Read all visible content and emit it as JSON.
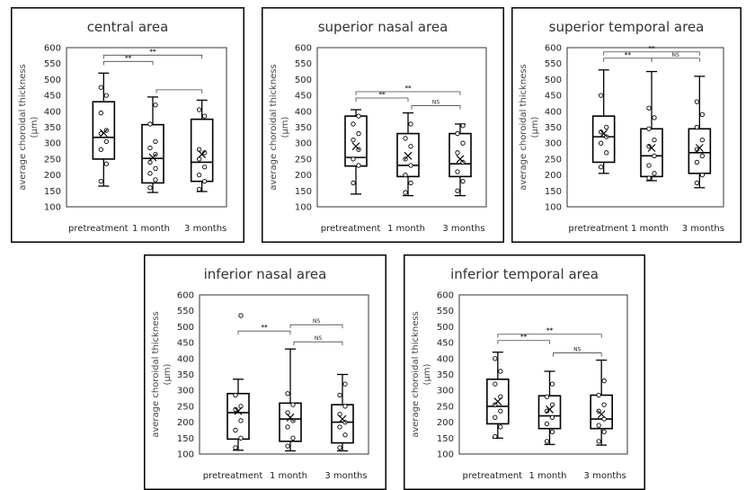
{
  "chart_data": [
    {
      "type": "box",
      "title": "central area",
      "ylabel": "average choroidal thickness (μm)",
      "ylim": [
        100,
        600
      ],
      "yticks": [
        100,
        150,
        200,
        250,
        300,
        350,
        400,
        450,
        500,
        550,
        600
      ],
      "categories": [
        "pretreatment",
        "1 month",
        "3 months"
      ],
      "boxes": [
        {
          "min": 165,
          "q1": 250,
          "median": 318,
          "q3": 430,
          "max": 520,
          "mean": 332,
          "points": [
            180,
            235,
            280,
            305,
            330,
            340,
            395,
            450,
            475
          ]
        },
        {
          "min": 145,
          "q1": 175,
          "median": 252,
          "q3": 358,
          "max": 445,
          "mean": 255,
          "points": [
            160,
            185,
            205,
            220,
            240,
            265,
            285,
            305,
            360,
            420
          ]
        },
        {
          "min": 148,
          "q1": 180,
          "median": 240,
          "q3": 375,
          "max": 435,
          "mean": 265,
          "points": [
            155,
            180,
            200,
            225,
            250,
            270,
            280,
            385,
            405
          ]
        }
      ],
      "significance": [
        {
          "label": "**",
          "from": 0,
          "to": 1,
          "level": 1
        },
        {
          "label": "**",
          "from": 0,
          "to": 2,
          "level": 2
        },
        {
          "label": "",
          "from": 1,
          "to": 2,
          "level": 0
        }
      ]
    },
    {
      "type": "box",
      "title": "superior nasal area",
      "ylabel": "average choroidal thickness (μm)",
      "ylim": [
        100,
        600
      ],
      "yticks": [
        100,
        150,
        200,
        250,
        300,
        350,
        400,
        450,
        500,
        550,
        600
      ],
      "categories": [
        "pretreatment",
        "1 month",
        "3 months"
      ],
      "boxes": [
        {
          "min": 140,
          "q1": 228,
          "median": 255,
          "q3": 385,
          "max": 405,
          "mean": 290,
          "points": [
            175,
            230,
            250,
            280,
            310,
            330,
            360,
            385
          ]
        },
        {
          "min": 135,
          "q1": 195,
          "median": 230,
          "q3": 330,
          "max": 395,
          "mean": 260,
          "points": [
            145,
            175,
            200,
            230,
            250,
            290,
            315,
            360
          ]
        },
        {
          "min": 135,
          "q1": 195,
          "median": 235,
          "q3": 330,
          "max": 360,
          "mean": 250,
          "points": [
            150,
            180,
            210,
            240,
            270,
            300,
            330,
            355
          ]
        }
      ],
      "significance": [
        {
          "label": "**",
          "from": 0,
          "to": 1,
          "level": 1
        },
        {
          "label": "**",
          "from": 0,
          "to": 2,
          "level": 2
        },
        {
          "label": "NS",
          "from": 1,
          "to": 2,
          "level": 0
        }
      ]
    },
    {
      "type": "box",
      "title": "superior temporal area",
      "ylabel": "average choroidal thickness (μm)",
      "ylim": [
        100,
        600
      ],
      "yticks": [
        100,
        150,
        200,
        250,
        300,
        350,
        400,
        450,
        500,
        550,
        600
      ],
      "categories": [
        "pretreatment",
        "1 month",
        "3 months"
      ],
      "boxes": [
        {
          "min": 205,
          "q1": 240,
          "median": 320,
          "q3": 385,
          "max": 530,
          "mean": 330,
          "points": [
            225,
            270,
            300,
            320,
            335,
            350,
            450
          ]
        },
        {
          "min": 182,
          "q1": 195,
          "median": 260,
          "q3": 345,
          "max": 525,
          "mean": 285,
          "points": [
            190,
            205,
            230,
            260,
            290,
            310,
            345,
            380,
            410
          ]
        },
        {
          "min": 160,
          "q1": 205,
          "median": 270,
          "q3": 345,
          "max": 510,
          "mean": 285,
          "points": [
            175,
            200,
            240,
            260,
            280,
            310,
            350,
            390,
            430
          ]
        }
      ],
      "significance": [
        {
          "label": "**",
          "from": 0,
          "to": 1,
          "level": 1
        },
        {
          "label": "**",
          "from": 0,
          "to": 2,
          "level": 2
        },
        {
          "label": "NS",
          "from": 1,
          "to": 2,
          "level": 1
        }
      ]
    },
    {
      "type": "box",
      "title": "inferior nasal area",
      "ylabel": "average choroidal thickness (μm)",
      "ylim": [
        100,
        600
      ],
      "yticks": [
        100,
        150,
        200,
        250,
        300,
        350,
        400,
        450,
        500,
        550,
        600
      ],
      "categories": [
        "pretreatment",
        "1 month",
        "3 months"
      ],
      "boxes": [
        {
          "min": 112,
          "q1": 147,
          "median": 230,
          "q3": 290,
          "max": 335,
          "mean": 235,
          "points": [
            120,
            150,
            175,
            205,
            240,
            250,
            285,
            535
          ]
        },
        {
          "min": 110,
          "q1": 140,
          "median": 210,
          "q3": 260,
          "max": 430,
          "mean": 215,
          "points": [
            125,
            150,
            185,
            205,
            230,
            255,
            290
          ]
        },
        {
          "min": 110,
          "q1": 135,
          "median": 200,
          "q3": 255,
          "max": 350,
          "mean": 210,
          "points": [
            120,
            160,
            185,
            200,
            225,
            250,
            285,
            320
          ]
        }
      ],
      "significance": [
        {
          "label": "**",
          "from": 0,
          "to": 1,
          "level": 2
        },
        {
          "label": "NS",
          "from": 1,
          "to": 2,
          "level": 3
        },
        {
          "label": "NS",
          "from": 1,
          "to": 2,
          "level": 0
        }
      ]
    },
    {
      "type": "box",
      "title": "inferior temporal area",
      "ylabel": "average choroidal thickness (μm)",
      "ylim": [
        100,
        600
      ],
      "yticks": [
        100,
        150,
        200,
        250,
        300,
        350,
        400,
        450,
        500,
        550,
        600
      ],
      "categories": [
        "pretreatment",
        "1 month",
        "3 months"
      ],
      "boxes": [
        {
          "min": 150,
          "q1": 195,
          "median": 250,
          "q3": 335,
          "max": 420,
          "mean": 265,
          "points": [
            155,
            185,
            215,
            235,
            255,
            280,
            320,
            360,
            400
          ]
        },
        {
          "min": 130,
          "q1": 180,
          "median": 220,
          "q3": 283,
          "max": 360,
          "mean": 240,
          "points": [
            140,
            170,
            195,
            215,
            235,
            255,
            280,
            320
          ]
        },
        {
          "min": 128,
          "q1": 180,
          "median": 210,
          "q3": 285,
          "max": 395,
          "mean": 225,
          "points": [
            140,
            170,
            190,
            210,
            235,
            255,
            285,
            330
          ]
        }
      ],
      "significance": [
        {
          "label": "**",
          "from": 0,
          "to": 1,
          "level": 1
        },
        {
          "label": "**",
          "from": 0,
          "to": 2,
          "level": 2
        },
        {
          "label": "NS",
          "from": 1,
          "to": 2,
          "level": 0
        }
      ]
    }
  ],
  "ylabel_line1": "average choroidal thickness",
  "ylabel_line2": "(μm)",
  "xlabels": {
    "pretreatment": "pretreatment",
    "month1": "1 month",
    "month3": "3 months"
  }
}
